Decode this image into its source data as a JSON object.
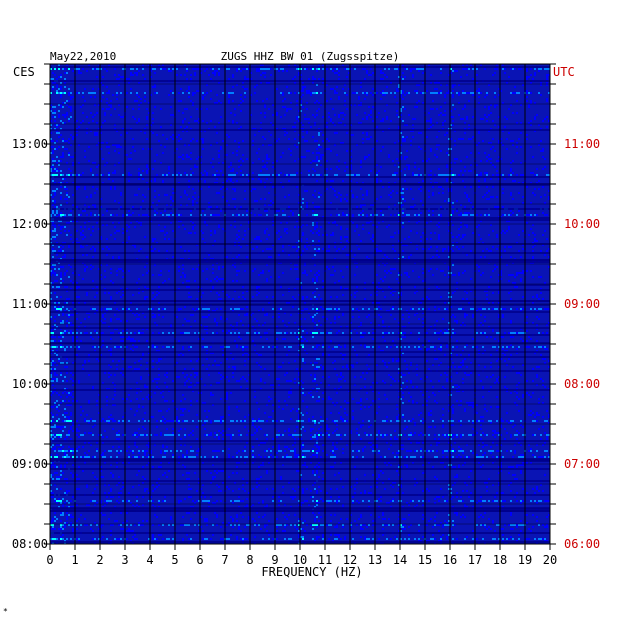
{
  "chart_data": {
    "type": "heatmap",
    "title": "ZUGS HHZ BW 01 (Zugsspitze)",
    "date": "May22,2010",
    "left_tz": "CES",
    "right_tz": "UTC",
    "xlabel": "FREQUENCY (HZ)",
    "x_ticks": [
      "0",
      "1",
      "2",
      "3",
      "4",
      "5",
      "6",
      "7",
      "8",
      "9",
      "10",
      "11",
      "12",
      "13",
      "14",
      "15",
      "16",
      "17",
      "18",
      "19",
      "20"
    ],
    "xlim": [
      0,
      20
    ],
    "y_ticks_left": [
      "08:00",
      "09:00",
      "10:00",
      "11:00",
      "12:00",
      "13:00"
    ],
    "y_ticks_right": [
      "06:00",
      "07:00",
      "08:00",
      "09:00",
      "10:00",
      "11:00"
    ],
    "time_range_local": [
      "08:00",
      "13:35"
    ],
    "colormap": [
      "#00008b",
      "#0000ff",
      "#0080ff",
      "#00ffff",
      "#ffff00",
      "#ff0000"
    ],
    "background_color": "#0a14b4",
    "right_label_color": "#cc0000",
    "persistent_lines_hz": [
      10.0,
      10.6,
      14.0,
      16.0
    ],
    "footer_mark": "*"
  }
}
